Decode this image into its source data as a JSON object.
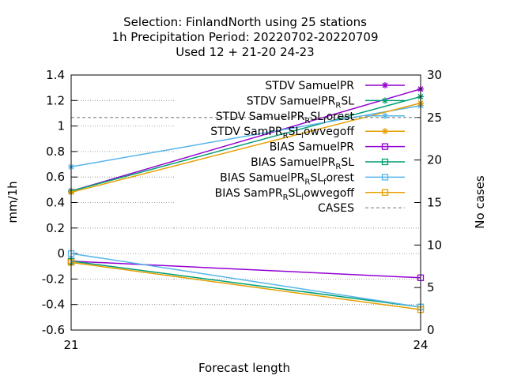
{
  "chart_data": {
    "type": "line",
    "title_lines": [
      "Selection: FinlandNorth using    25 stations",
      "1h Precipitation   Period: 20220702-20220709",
      "Used  12 + 21-20 24-23"
    ],
    "xlabel": "Forecast length",
    "ylabel": "mm/1h",
    "y2label": "No cases",
    "x": [
      21,
      24
    ],
    "x_ticks": [
      "21",
      "24"
    ],
    "ylim": [
      -0.6,
      1.4
    ],
    "y_ticks": [
      "-0.6",
      "-0.4",
      "-0.2",
      "0",
      "0.2",
      "0.4",
      "0.6",
      "0.8",
      "1",
      "1.2",
      "1.4"
    ],
    "y2lim": [
      0,
      30
    ],
    "y2_ticks": [
      "0",
      "5",
      "10",
      "15",
      "20",
      "25",
      "30"
    ],
    "grid": "horizontal dotted, left half",
    "legend_position": "top-right",
    "series": [
      {
        "name": "STDV SamuelPR",
        "label": {
          "a": "STDV SamuelPR"
        },
        "values": [
          0.49,
          1.29
        ],
        "color": "#9400d3",
        "marker": "star",
        "axis": "y1"
      },
      {
        "name": "STDV SamuelPR_RSL",
        "label": {
          "a": "STDV SamuelPR",
          "sub": "R",
          "b": "SL"
        },
        "values": [
          0.49,
          1.23
        ],
        "color": "#009e73",
        "marker": "star",
        "axis": "y1"
      },
      {
        "name": "STDV SamuelPR_RSL_forest",
        "label": {
          "a": "STDV SamuelPR",
          "sub": "R",
          "b": "SL",
          "sub2": "f",
          "c": "orest"
        },
        "values": [
          0.68,
          1.16
        ],
        "color": "#56b4e9",
        "marker": "star",
        "axis": "y1"
      },
      {
        "name": "STDV SamPR_RSL_lowvegoff",
        "label": {
          "a": "STDV SamPR",
          "sub": "R",
          "b": "SL",
          "sub2": "l",
          "c": "owvegoff"
        },
        "values": [
          0.48,
          1.18
        ],
        "color": "#e69f00",
        "marker": "star",
        "axis": "y1"
      },
      {
        "name": "BIAS SamuelPR",
        "label": {
          "a": "BIAS SamuelPR"
        },
        "values": [
          -0.06,
          -0.19
        ],
        "color": "#9400d3",
        "marker": "square",
        "axis": "y1"
      },
      {
        "name": "BIAS SamuelPR_RSL",
        "label": {
          "a": "BIAS SamuelPR",
          "sub": "R",
          "b": "SL"
        },
        "values": [
          -0.06,
          -0.42
        ],
        "color": "#009e73",
        "marker": "square",
        "axis": "y1"
      },
      {
        "name": "BIAS SamuelPR_RSL_forest",
        "label": {
          "a": "BIAS SamuelPR",
          "sub": "R",
          "b": "SL",
          "sub2": "f",
          "c": "orest"
        },
        "values": [
          0.0,
          -0.42
        ],
        "color": "#56b4e9",
        "marker": "square",
        "axis": "y1"
      },
      {
        "name": "BIAS SamPR_RSL_lowvegoff",
        "label": {
          "a": "BIAS SamPR",
          "sub": "R",
          "b": "SL",
          "sub2": "l",
          "c": "owvegoff"
        },
        "values": [
          -0.07,
          -0.44
        ],
        "color": "#e69f00",
        "marker": "square",
        "axis": "y1"
      },
      {
        "name": "CASES",
        "label": {
          "a": "CASES"
        },
        "values": [
          25,
          25
        ],
        "color": "#808080",
        "marker": "none",
        "dashed": true,
        "axis": "y2"
      }
    ]
  }
}
